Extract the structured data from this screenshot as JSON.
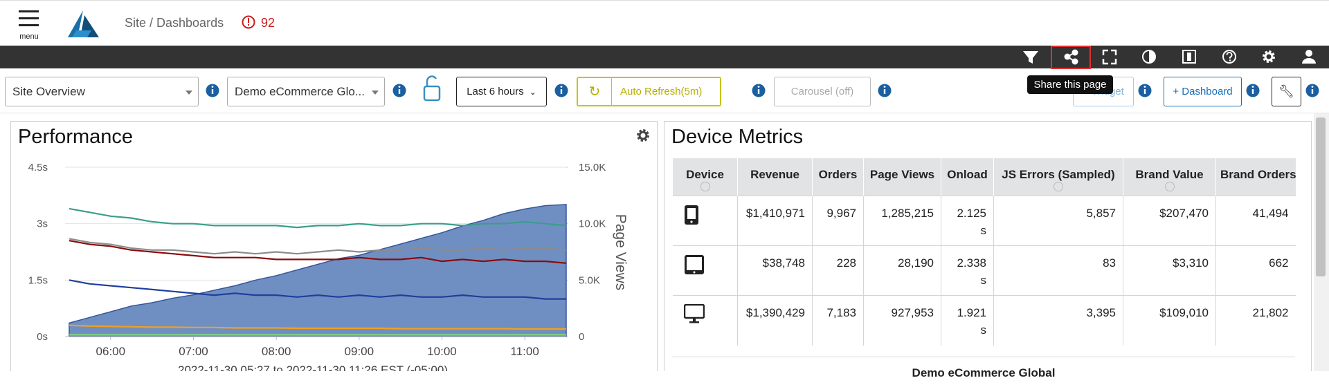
{
  "header": {
    "menu_label": "menu",
    "breadcrumb": "Site / Dashboards",
    "alert_count": 92
  },
  "toolbar": {
    "tooltip": "Share this page"
  },
  "controls": {
    "dashboard": "Site Overview",
    "site": "Demo eCommerce Glo...",
    "time_range": "Last 6 hours",
    "auto_refresh": "Auto Refresh(5m)",
    "carousel": "Carousel (off)",
    "add_widget": "+ Widget",
    "add_dashboard": "+ Dashboard"
  },
  "performance": {
    "title": "Performance",
    "chart_data": {
      "type": "line",
      "x_label": "2022-11-30 05:27 to 2022-11-30 11:26 EST (-05:00)",
      "y2_label": "Page Views",
      "x": [
        5.5,
        5.75,
        6,
        6.25,
        6.5,
        6.75,
        7,
        7.25,
        7.5,
        7.75,
        8,
        8.25,
        8.5,
        8.75,
        9,
        9.25,
        9.5,
        9.75,
        10,
        10.25,
        10.5,
        10.75,
        11,
        11.25,
        11.5
      ],
      "xlim": [
        5.45,
        11.5
      ],
      "xticks": [
        {
          "value": 6,
          "label": "06:00"
        },
        {
          "value": 7,
          "label": "07:00"
        },
        {
          "value": 8,
          "label": "08:00"
        },
        {
          "value": 9,
          "label": "09:00"
        },
        {
          "value": 10,
          "label": "10:00"
        },
        {
          "value": 11,
          "label": "11:00"
        }
      ],
      "ylim": [
        0,
        4.5
      ],
      "yticks": [
        {
          "value": 0,
          "label": "0s"
        },
        {
          "value": 1.5,
          "label": "1.5s"
        },
        {
          "value": 3,
          "label": "3s"
        },
        {
          "value": 4.5,
          "label": "4.5s"
        }
      ],
      "y2lim": [
        0,
        15000
      ],
      "y2ticks": [
        0,
        {
          "value": 5000,
          "label": "5.0K"
        },
        {
          "value": 10000,
          "label": "10.0K"
        },
        {
          "value": 15000,
          "label": "15.0K"
        }
      ],
      "grid": true,
      "series": [
        {
          "type": "area",
          "axis": "y2",
          "color": "#6f8fc2",
          "values": [
            1200,
            1700,
            2200,
            2700,
            3000,
            3400,
            3700,
            4100,
            4500,
            5000,
            5400,
            5900,
            6400,
            6900,
            7200,
            7700,
            8200,
            8700,
            9200,
            9800,
            10300,
            10900,
            11300,
            11600,
            11700
          ]
        },
        {
          "color": "#3a9e8a",
          "values": [
            3.4,
            3.3,
            3.2,
            3.15,
            3.05,
            3.0,
            3.0,
            2.95,
            2.95,
            2.95,
            2.95,
            2.9,
            2.95,
            2.95,
            3.0,
            2.95,
            2.95,
            3.0,
            3.0,
            2.95,
            3.0,
            3.0,
            3.05,
            3.0,
            2.95
          ]
        },
        {
          "color": "#8c8c8c",
          "values": [
            2.6,
            2.5,
            2.45,
            2.35,
            2.3,
            2.3,
            2.25,
            2.2,
            2.25,
            2.2,
            2.25,
            2.2,
            2.25,
            2.3,
            2.25,
            2.3,
            2.3,
            2.35,
            2.3,
            2.3,
            2.35,
            2.3,
            2.35,
            2.35,
            2.3
          ]
        },
        {
          "color": "#8b0a0a",
          "values": [
            2.55,
            2.45,
            2.4,
            2.3,
            2.25,
            2.2,
            2.15,
            2.1,
            2.1,
            2.1,
            2.05,
            2.05,
            2.05,
            2.05,
            2.1,
            2.05,
            2.05,
            2.1,
            2.0,
            2.05,
            2.0,
            2.05,
            2.0,
            2.0,
            1.95
          ]
        },
        {
          "color": "#1f3f9e",
          "values": [
            1.5,
            1.4,
            1.35,
            1.3,
            1.25,
            1.2,
            1.15,
            1.1,
            1.15,
            1.1,
            1.1,
            1.05,
            1.1,
            1.05,
            1.1,
            1.05,
            1.1,
            1.05,
            1.05,
            1.1,
            1.05,
            1.05,
            1.05,
            1.0,
            1.0
          ]
        },
        {
          "color": "#f0a020",
          "values": [
            0.3,
            0.28,
            0.27,
            0.26,
            0.25,
            0.25,
            0.24,
            0.24,
            0.23,
            0.23,
            0.23,
            0.22,
            0.22,
            0.22,
            0.22,
            0.22,
            0.21,
            0.21,
            0.21,
            0.21,
            0.21,
            0.21,
            0.2,
            0.2,
            0.2
          ]
        },
        {
          "color": "#7ed37e",
          "values": [
            0.05,
            0.05,
            0.05,
            0.05,
            0.05,
            0.05,
            0.05,
            0.05,
            0.05,
            0.05,
            0.05,
            0.05,
            0.05,
            0.05,
            0.05,
            0.05,
            0.05,
            0.05,
            0.05,
            0.05,
            0.05,
            0.05,
            0.05,
            0.05,
            0.05
          ]
        }
      ]
    }
  },
  "device_metrics": {
    "title": "Device Metrics",
    "table": {
      "columns": [
        "Device",
        "Revenue",
        "Orders",
        "Page Views",
        "Onload",
        "JS Errors (Sampled)",
        "Brand Value",
        "Brand Orders"
      ],
      "rows": [
        [
          "$1,410,971",
          "9,967",
          "1,285,215",
          "2.125 s",
          "5,857",
          "$207,470",
          "41,494"
        ],
        [
          "$38,748",
          "228",
          "28,190",
          "2.338 s",
          "83",
          "$3,310",
          "662"
        ],
        [
          "$1,390,429",
          "7,183",
          "927,953",
          "1.921 s",
          "3,395",
          "$109,010",
          "21,802"
        ]
      ],
      "footer": "Demo eCommerce Global"
    }
  }
}
